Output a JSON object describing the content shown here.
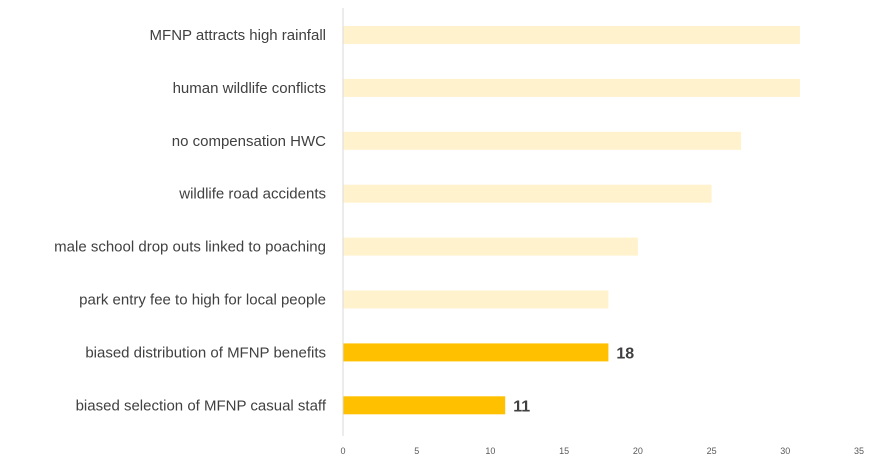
{
  "chart_data": {
    "type": "bar",
    "orientation": "horizontal",
    "categories": [
      "MFNP attracts high rainfall",
      "human wildlife conflicts",
      "no compensation HWC",
      "wildlife road accidents",
      "male school drop outs linked to poaching",
      "park entry fee to high for local people",
      "biased distribution of MFNP benefits",
      "biased selection of MFNP casual staff"
    ],
    "values": [
      31,
      31,
      27,
      25,
      20,
      18,
      18,
      11
    ],
    "data_labels": [
      "",
      "",
      "",
      "",
      "",
      "",
      "18",
      "11"
    ],
    "highlighted": [
      false,
      false,
      false,
      false,
      false,
      false,
      true,
      true
    ],
    "colors": {
      "bar": "#FFF2CC",
      "highlight": "#FFC000",
      "axis": "#D9D9D9"
    },
    "xlim": [
      0,
      35
    ],
    "xticks": [
      "0",
      "5",
      "10",
      "15",
      "20",
      "25",
      "30",
      "35"
    ],
    "title": "",
    "xlabel": "",
    "ylabel": "",
    "grid": false,
    "legend": "none"
  }
}
